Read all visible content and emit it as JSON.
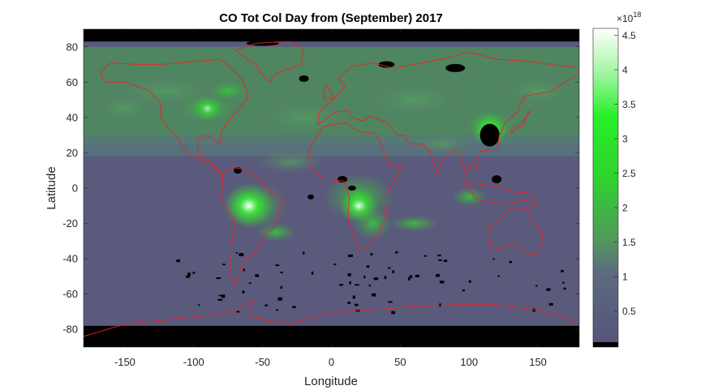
{
  "chart_data": {
    "type": "heatmap",
    "title": "CO Tot Col Day from (September) 2017",
    "xlabel": "Longitude",
    "ylabel": "Latitude",
    "xlim": [
      -180,
      180
    ],
    "ylim": [
      -90,
      90
    ],
    "x_ticks": [
      -150,
      -100,
      -50,
      0,
      50,
      100,
      150
    ],
    "y_ticks": [
      80,
      60,
      40,
      20,
      0,
      -20,
      -40,
      -60,
      -80
    ],
    "colorbar": {
      "exponent_label": "×10",
      "exponent_power": "18",
      "range": [
        0.05,
        4.6
      ],
      "ticks": [
        0.5,
        1,
        1.5,
        2,
        2.5,
        3,
        3.5,
        4,
        4.5
      ],
      "colors": {
        "low": "#55557a",
        "mid": "#33cc33",
        "high": "#ffffff",
        "nodata": "#000000"
      }
    },
    "coastline_color": "#ee2222",
    "hotspots": [
      {
        "region": "South America (Amazon)",
        "lon": -60,
        "lat": -10,
        "value": 4.5
      },
      {
        "region": "Central Africa",
        "lon": 20,
        "lat": -10,
        "value": 3.3
      },
      {
        "region": "East China",
        "lon": 115,
        "lat": 33,
        "value": 3.0
      },
      {
        "region": "North America",
        "lon": -90,
        "lat": 45,
        "value": 1.9
      }
    ]
  }
}
